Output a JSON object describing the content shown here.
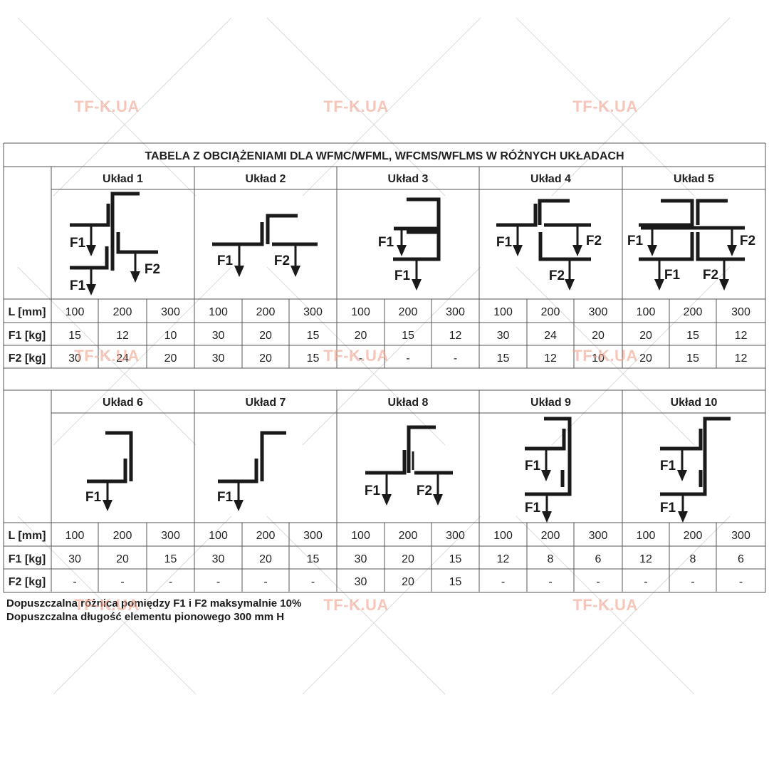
{
  "title": "TABELA  Z OBCIĄŻENIAMI DLA WFMC/WFML, WFCMS/WFLMS W RÓŻNYCH UKŁADACH",
  "row_labels": {
    "length": "L [mm]",
    "f1": "F1 [kg]",
    "f2": "F2 [kg]"
  },
  "force_labels": {
    "f1": "F1",
    "f2": "F2"
  },
  "sections": [
    {
      "layouts": [
        {
          "name": "Układ 1",
          "f1": [
            "15",
            "12",
            "10"
          ],
          "f2": [
            "30",
            "24",
            "20"
          ]
        },
        {
          "name": "Układ 2",
          "f1": [
            "30",
            "20",
            "15"
          ],
          "f2": [
            "30",
            "20",
            "15"
          ]
        },
        {
          "name": "Układ 3",
          "f1": [
            "20",
            "15",
            "12"
          ],
          "f2": [
            "-",
            "-",
            "-"
          ]
        },
        {
          "name": "Układ 4",
          "f1": [
            "30",
            "24",
            "20"
          ],
          "f2": [
            "15",
            "12",
            "10"
          ]
        },
        {
          "name": "Układ 5",
          "f1": [
            "20",
            "15",
            "12"
          ],
          "f2": [
            "20",
            "15",
            "12"
          ]
        }
      ]
    },
    {
      "layouts": [
        {
          "name": "Układ 6",
          "f1": [
            "30",
            "20",
            "15"
          ],
          "f2": [
            "-",
            "-",
            "-"
          ]
        },
        {
          "name": "Układ 7",
          "f1": [
            "30",
            "20",
            "15"
          ],
          "f2": [
            "-",
            "-",
            "-"
          ]
        },
        {
          "name": "Układ 8",
          "f1": [
            "30",
            "20",
            "15"
          ],
          "f2": [
            "30",
            "20",
            "15"
          ]
        },
        {
          "name": "Układ 9",
          "f1": [
            "12",
            "8",
            "6"
          ],
          "f2": [
            "-",
            "-",
            "-"
          ]
        },
        {
          "name": "Układ 10",
          "f1": [
            "12",
            "8",
            "6"
          ],
          "f2": [
            "-",
            "-",
            "-"
          ]
        }
      ]
    }
  ],
  "lengths": [
    "100",
    "200",
    "300"
  ],
  "notes": [
    "Dopuszczalna różnica pomiędzy F1 i F2 maksymalnie 10%",
    "Dopuszczalna długość elementu pionowego 300 mm H"
  ],
  "watermark": {
    "text": "TF-K.UA",
    "color": "#f0a08c"
  },
  "colors": {
    "grid": "#555555",
    "text": "#222222",
    "diagram": "#1a1a1a"
  }
}
